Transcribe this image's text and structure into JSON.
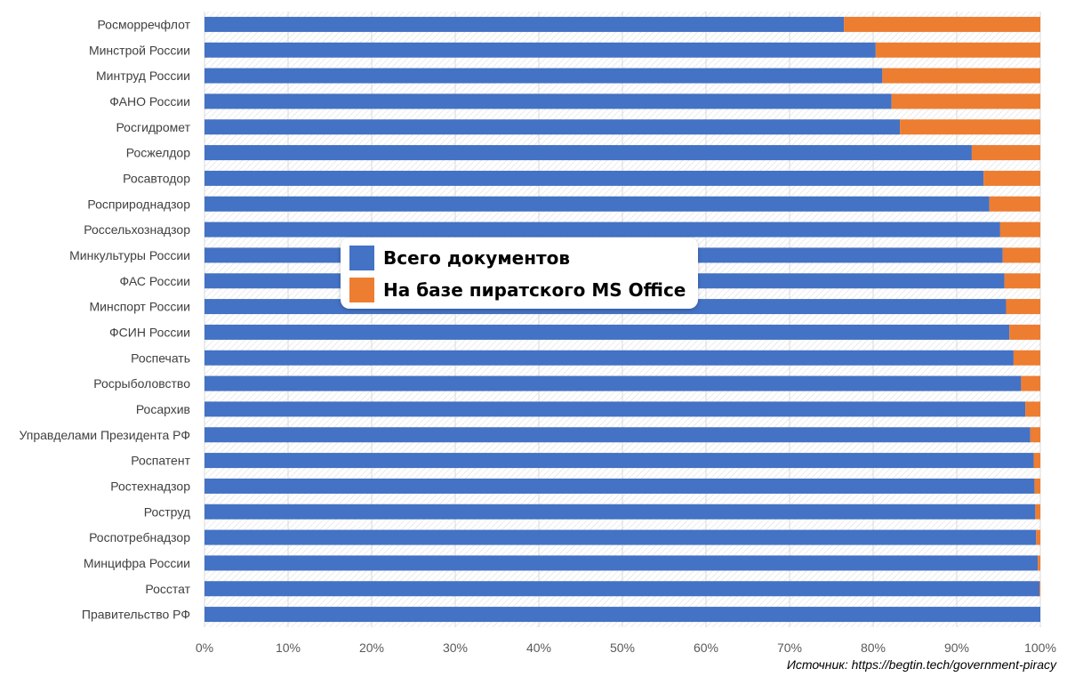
{
  "colors": {
    "series1": "#4472C4",
    "series2": "#ED7D31",
    "hatch": "#d9d9d9"
  },
  "source_text": "Источник: https://begtin.tech/government-piracy",
  "chart_data": {
    "type": "bar",
    "orientation": "horizontal",
    "stacked": "percent",
    "title": "",
    "xlabel": "",
    "ylabel": "",
    "xlim": [
      0,
      100
    ],
    "xticks": [
      "0%",
      "10%",
      "20%",
      "30%",
      "40%",
      "50%",
      "60%",
      "70%",
      "80%",
      "90%",
      "100%"
    ],
    "legend_placement": "center",
    "categories": [
      "Росморречфлот",
      "Минстрой России",
      "Минтруд России",
      "ФАНО России",
      "Росгидромет",
      "Росжелдор",
      "Росавтодор",
      "Росприроднадзор",
      "Россельхознадзор",
      "Минкультуры России",
      "ФАС России",
      "Минспорт России",
      "ФСИН России",
      "Роспечать",
      "Росрыболовство",
      "Росархив",
      "Управделами Президента РФ",
      "Роспатент",
      "Ростехнадзор",
      "Роструд",
      "Роспотребнадзор",
      "Минцифра России",
      "Росстат",
      "Правительство РФ"
    ],
    "series": [
      {
        "name": "Всего документов",
        "values": [
          76.5,
          80.3,
          81.1,
          82.2,
          83.2,
          91.8,
          93.2,
          93.9,
          95.2,
          95.5,
          95.7,
          95.9,
          96.3,
          96.8,
          97.7,
          98.2,
          98.8,
          99.2,
          99.3,
          99.4,
          99.5,
          99.7,
          99.9,
          100
        ]
      },
      {
        "name": "На базе пиратского MS Office",
        "values": [
          23.5,
          19.7,
          18.9,
          17.8,
          16.8,
          8.2,
          6.8,
          6.1,
          4.8,
          4.5,
          4.3,
          4.1,
          3.7,
          3.2,
          2.3,
          1.8,
          1.2,
          0.8,
          0.7,
          0.6,
          0.5,
          0.3,
          0.1,
          0
        ]
      }
    ]
  }
}
